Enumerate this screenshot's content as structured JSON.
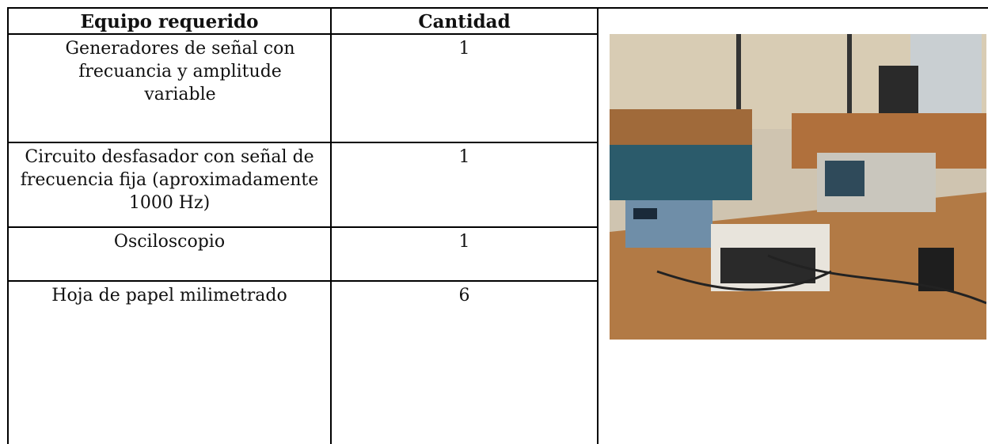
{
  "table": {
    "headers": [
      "Equipo requerido",
      "Cantidad"
    ],
    "rows": [
      [
        "Generadores de señal con frecuancia y amplitude variable",
        1
      ],
      [
        "Circuito desfasador con señal de frecuencia fija (aproximadamente 1000 Hz)",
        1
      ],
      [
        "Osciloscopio",
        1
      ],
      [
        "Hoja de papel milimetrado",
        6
      ]
    ]
  }
}
